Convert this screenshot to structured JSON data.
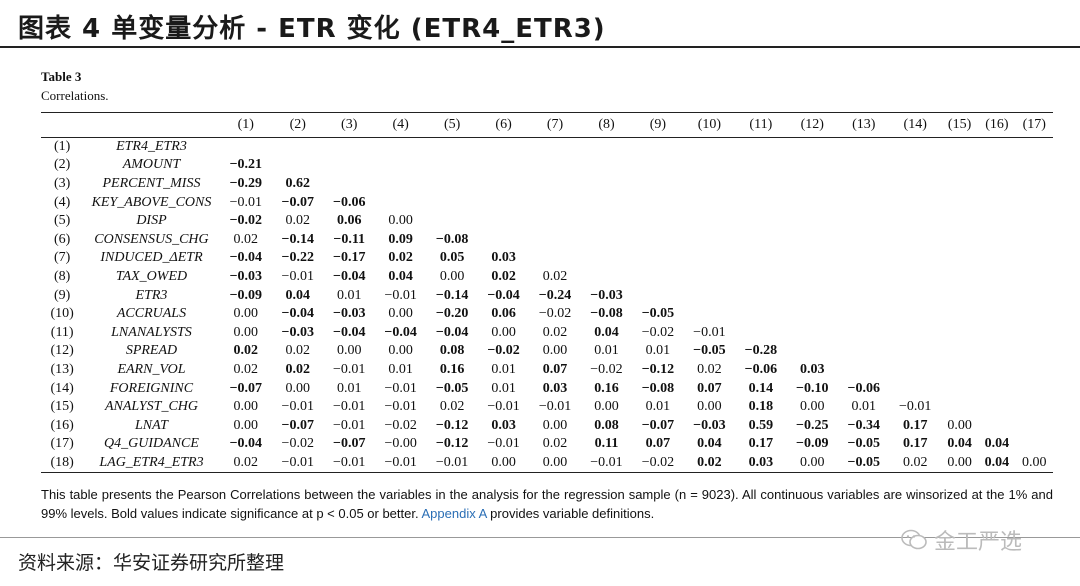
{
  "figure_title": "图表 4 单变量分析 - ETR 变化 (ETR4_ETR3)",
  "table_label": "Table 3",
  "table_caption": "Correlations.",
  "columns": [
    "",
    "",
    "(1)",
    "(2)",
    "(3)",
    "(4)",
    "(5)",
    "(6)",
    "(7)",
    "(8)",
    "(9)",
    "(10)",
    "(11)",
    "(12)",
    "(13)",
    "(14)",
    "(15)",
    "(16)",
    "(17)"
  ],
  "rows": [
    {
      "num": "(1)",
      "var": "ETR4_ETR3",
      "vals": []
    },
    {
      "num": "(2)",
      "var": "AMOUNT",
      "vals": [
        [
          "−0.21",
          1
        ]
      ]
    },
    {
      "num": "(3)",
      "var": "PERCENT_MISS",
      "vals": [
        [
          "−0.29",
          1
        ],
        [
          "0.62",
          1
        ]
      ]
    },
    {
      "num": "(4)",
      "var": "KEY_ABOVE_CONS",
      "vals": [
        [
          "−0.01",
          0
        ],
        [
          "−0.07",
          1
        ],
        [
          "−0.06",
          1
        ]
      ]
    },
    {
      "num": "(5)",
      "var": "DISP",
      "vals": [
        [
          "−0.02",
          1
        ],
        [
          "0.02",
          0
        ],
        [
          "0.06",
          1
        ],
        [
          "0.00",
          0
        ]
      ]
    },
    {
      "num": "(6)",
      "var": "CONSENSUS_CHG",
      "vals": [
        [
          "0.02",
          0
        ],
        [
          "−0.14",
          1
        ],
        [
          "−0.11",
          1
        ],
        [
          "0.09",
          1
        ],
        [
          "−0.08",
          1
        ]
      ]
    },
    {
      "num": "(7)",
      "var": "INDUCED_ΔETR",
      "vals": [
        [
          "−0.04",
          1
        ],
        [
          "−0.22",
          1
        ],
        [
          "−0.17",
          1
        ],
        [
          "0.02",
          1
        ],
        [
          "0.05",
          1
        ],
        [
          "0.03",
          1
        ]
      ]
    },
    {
      "num": "(8)",
      "var": "TAX_OWED",
      "vals": [
        [
          "−0.03",
          1
        ],
        [
          "−0.01",
          0
        ],
        [
          "−0.04",
          1
        ],
        [
          "0.04",
          1
        ],
        [
          "0.00",
          0
        ],
        [
          "0.02",
          1
        ],
        [
          "0.02",
          0
        ]
      ]
    },
    {
      "num": "(9)",
      "var": "ETR3",
      "vals": [
        [
          "−0.09",
          1
        ],
        [
          "0.04",
          1
        ],
        [
          "0.01",
          0
        ],
        [
          "−0.01",
          0
        ],
        [
          "−0.14",
          1
        ],
        [
          "−0.04",
          1
        ],
        [
          "−0.24",
          1
        ],
        [
          "−0.03",
          1
        ]
      ]
    },
    {
      "num": "(10)",
      "var": "ACCRUALS",
      "vals": [
        [
          "0.00",
          0
        ],
        [
          "−0.04",
          1
        ],
        [
          "−0.03",
          1
        ],
        [
          "0.00",
          0
        ],
        [
          "−0.20",
          1
        ],
        [
          "0.06",
          1
        ],
        [
          "−0.02",
          0
        ],
        [
          "−0.08",
          1
        ],
        [
          "−0.05",
          1
        ]
      ]
    },
    {
      "num": "(11)",
      "var": "LNANALYSTS",
      "vals": [
        [
          "0.00",
          0
        ],
        [
          "−0.03",
          1
        ],
        [
          "−0.04",
          1
        ],
        [
          "−0.04",
          1
        ],
        [
          "−0.04",
          1
        ],
        [
          "0.00",
          0
        ],
        [
          "0.02",
          0
        ],
        [
          "0.04",
          1
        ],
        [
          "−0.02",
          0
        ],
        [
          "−0.01",
          0
        ]
      ]
    },
    {
      "num": "(12)",
      "var": "SPREAD",
      "vals": [
        [
          "0.02",
          1
        ],
        [
          "0.02",
          0
        ],
        [
          "0.00",
          0
        ],
        [
          "0.00",
          0
        ],
        [
          "0.08",
          1
        ],
        [
          "−0.02",
          1
        ],
        [
          "0.00",
          0
        ],
        [
          "0.01",
          0
        ],
        [
          "0.01",
          0
        ],
        [
          "−0.05",
          1
        ],
        [
          "−0.28",
          1
        ]
      ]
    },
    {
      "num": "(13)",
      "var": "EARN_VOL",
      "vals": [
        [
          "0.02",
          0
        ],
        [
          "0.02",
          1
        ],
        [
          "−0.01",
          0
        ],
        [
          "0.01",
          0
        ],
        [
          "0.16",
          1
        ],
        [
          "0.01",
          0
        ],
        [
          "0.07",
          1
        ],
        [
          "−0.02",
          0
        ],
        [
          "−0.12",
          1
        ],
        [
          "0.02",
          0
        ],
        [
          "−0.06",
          1
        ],
        [
          "0.03",
          1
        ]
      ]
    },
    {
      "num": "(14)",
      "var": "FOREIGNINC",
      "vals": [
        [
          "−0.07",
          1
        ],
        [
          "0.00",
          0
        ],
        [
          "0.01",
          0
        ],
        [
          "−0.01",
          0
        ],
        [
          "−0.05",
          1
        ],
        [
          "0.01",
          0
        ],
        [
          "0.03",
          1
        ],
        [
          "0.16",
          1
        ],
        [
          "−0.08",
          1
        ],
        [
          "0.07",
          1
        ],
        [
          "0.14",
          1
        ],
        [
          "−0.10",
          1
        ],
        [
          "−0.06",
          1
        ]
      ]
    },
    {
      "num": "(15)",
      "var": "ANALYST_CHG",
      "vals": [
        [
          "0.00",
          0
        ],
        [
          "−0.01",
          0
        ],
        [
          "−0.01",
          0
        ],
        [
          "−0.01",
          0
        ],
        [
          "0.02",
          0
        ],
        [
          "−0.01",
          0
        ],
        [
          "−0.01",
          0
        ],
        [
          "0.00",
          0
        ],
        [
          "0.01",
          0
        ],
        [
          "0.00",
          0
        ],
        [
          "0.18",
          1
        ],
        [
          "0.00",
          0
        ],
        [
          "0.01",
          0
        ],
        [
          "−0.01",
          0
        ]
      ]
    },
    {
      "num": "(16)",
      "var": "LNAT",
      "vals": [
        [
          "0.00",
          0
        ],
        [
          "−0.07",
          1
        ],
        [
          "−0.01",
          0
        ],
        [
          "−0.02",
          0
        ],
        [
          "−0.12",
          1
        ],
        [
          "0.03",
          1
        ],
        [
          "0.00",
          0
        ],
        [
          "0.08",
          1
        ],
        [
          "−0.07",
          1
        ],
        [
          "−0.03",
          1
        ],
        [
          "0.59",
          1
        ],
        [
          "−0.25",
          1
        ],
        [
          "−0.34",
          1
        ],
        [
          "0.17",
          1
        ],
        [
          "0.00",
          0
        ]
      ]
    },
    {
      "num": "(17)",
      "var": "Q4_GUIDANCE",
      "vals": [
        [
          "−0.04",
          1
        ],
        [
          "−0.02",
          0
        ],
        [
          "−0.07",
          1
        ],
        [
          "−0.00",
          0
        ],
        [
          "−0.12",
          1
        ],
        [
          "−0.01",
          0
        ],
        [
          "0.02",
          0
        ],
        [
          "0.11",
          1
        ],
        [
          "0.07",
          1
        ],
        [
          "0.04",
          1
        ],
        [
          "0.17",
          1
        ],
        [
          "−0.09",
          1
        ],
        [
          "−0.05",
          1
        ],
        [
          "0.17",
          1
        ],
        [
          "0.04",
          1
        ],
        [
          "0.04",
          1
        ]
      ]
    },
    {
      "num": "(18)",
      "var": "LAG_ETR4_ETR3",
      "vals": [
        [
          "0.02",
          0
        ],
        [
          "−0.01",
          0
        ],
        [
          "−0.01",
          0
        ],
        [
          "−0.01",
          0
        ],
        [
          "−0.01",
          0
        ],
        [
          "0.00",
          0
        ],
        [
          "0.00",
          0
        ],
        [
          "−0.01",
          0
        ],
        [
          "−0.02",
          0
        ],
        [
          "0.02",
          1
        ],
        [
          "0.03",
          1
        ],
        [
          "0.00",
          0
        ],
        [
          "−0.05",
          1
        ],
        [
          "0.02",
          0
        ],
        [
          "0.00",
          0
        ],
        [
          "0.04",
          1
        ],
        [
          "0.00",
          0
        ]
      ]
    }
  ],
  "note_text": "This table presents the Pearson Correlations between the variables in the analysis for the regression sample (n = 9023). All continuous variables are winsorized at the 1% and 99% levels. Bold values indicate significance at p < 0.05 or better.",
  "note_link": "Appendix A",
  "note_tail": " provides variable definitions.",
  "source": "资料来源：华安证券研究所整理",
  "watermark": "金工严选"
}
